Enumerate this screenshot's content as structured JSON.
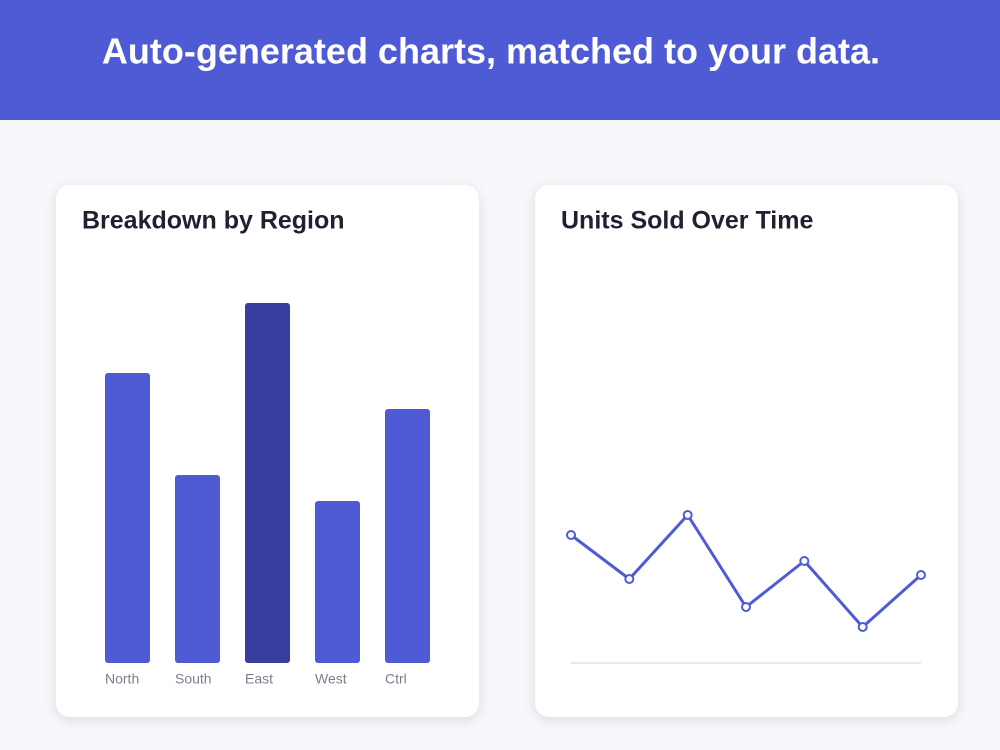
{
  "header": {
    "title": "Auto-generated charts, matched to your data."
  },
  "chart_data": [
    {
      "type": "bar",
      "title": "Breakdown by Region",
      "categories": [
        "North",
        "South",
        "East",
        "West",
        "Ctrl"
      ],
      "values": [
        72.5,
        47,
        90,
        40.5,
        63.5
      ],
      "colors": [
        "#4f5bd5",
        "#4f5bd5",
        "#373f9e",
        "#4f5bd5",
        "#4f5bd5"
      ],
      "ylim": [
        0,
        100
      ]
    },
    {
      "type": "line",
      "title": "Units Sold Over Time",
      "values": [
        32,
        21,
        37,
        14,
        25.5,
        9,
        22
      ],
      "color": "#4f5bd5",
      "ylim": [
        0,
        100
      ]
    }
  ]
}
